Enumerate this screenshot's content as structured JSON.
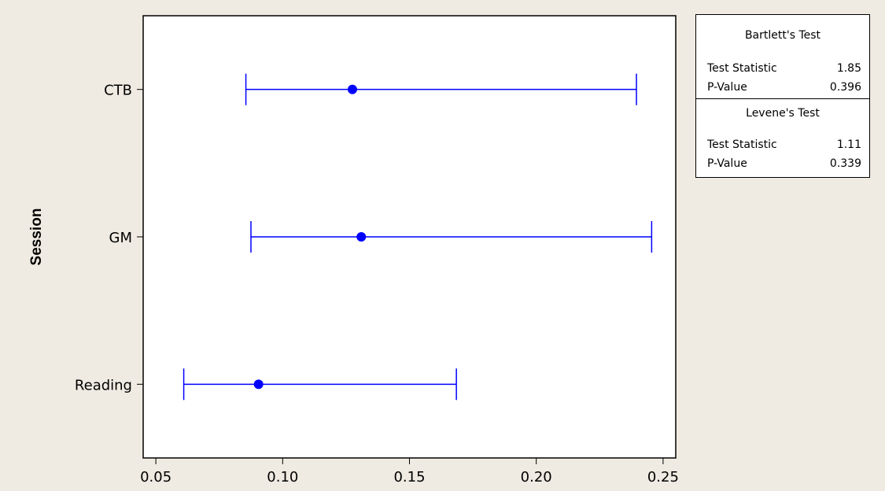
{
  "chart_data": {
    "type": "interval",
    "ylabel": "Session",
    "xlim": [
      0.045,
      0.255
    ],
    "xticks": [
      0.05,
      0.1,
      0.15,
      0.2,
      0.25
    ],
    "xtick_labels": [
      "0.05",
      "0.10",
      "0.15",
      "0.20",
      "0.25"
    ],
    "categories": [
      "CTB",
      "GM",
      "Reading"
    ],
    "intervals": [
      {
        "category": "CTB",
        "lower": 0.0855,
        "estimate": 0.1275,
        "upper": 0.2395
      },
      {
        "category": "GM",
        "lower": 0.0875,
        "estimate": 0.131,
        "upper": 0.2455
      },
      {
        "category": "Reading",
        "lower": 0.061,
        "estimate": 0.0905,
        "upper": 0.1685
      }
    ],
    "color": "#0000ff"
  },
  "stats": {
    "bartlett": {
      "title": "Bartlett's Test",
      "stat_label": "Test Statistic",
      "stat_value": "1.85",
      "p_label": "P-Value",
      "p_value": "0.396"
    },
    "levene": {
      "title": "Levene's Test",
      "stat_label": "Test Statistic",
      "stat_value": "1.11",
      "p_label": "P-Value",
      "p_value": "0.339"
    }
  }
}
